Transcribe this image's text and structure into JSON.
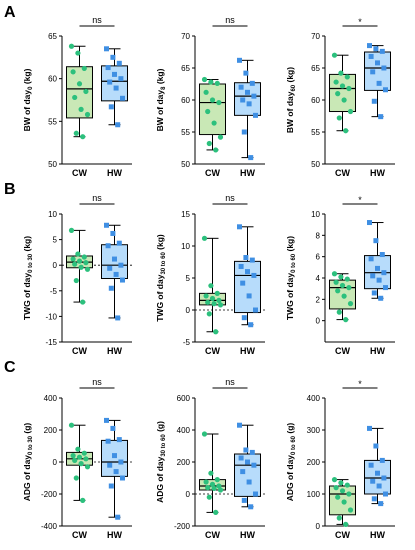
{
  "figure": {
    "panel_letters": [
      "A",
      "B",
      "C"
    ],
    "colors": {
      "CW": "#2cc07d",
      "CW_fill": "#c9e8b6",
      "HW": "#3f8fe3",
      "HW_fill": "#b7dcfb",
      "axis": "#000000"
    }
  },
  "chart_data": [
    {
      "type": "box",
      "row": 0,
      "col": 0,
      "ylabel_main": "BW of day",
      "ylabel_sub": "0",
      "ylabel_unit": " (kg)",
      "ylim": [
        50,
        65
      ],
      "yticks": [
        50,
        55,
        60,
        65
      ],
      "ytick_labels": [
        "50",
        "55",
        "60",
        "65"
      ],
      "zero_line": false,
      "categories": [
        "CW",
        "HW"
      ],
      "significance": "ns",
      "boxes": [
        {
          "name": "CW",
          "min": 53.2,
          "q1": 55.4,
          "median": 58.8,
          "q3": 61.4,
          "max": 63.8,
          "points": [
            63.8,
            63.0,
            61.2,
            60.8,
            59.4,
            58.5,
            57.8,
            56.4,
            55.8,
            53.6,
            53.2
          ]
        },
        {
          "name": "HW",
          "min": 54.6,
          "q1": 57.4,
          "median": 59.7,
          "q3": 61.5,
          "max": 63.5,
          "points": [
            63.5,
            62.5,
            61.8,
            61.3,
            60.5,
            60.0,
            59.6,
            58.9,
            57.7,
            56.7,
            54.6
          ]
        }
      ]
    },
    {
      "type": "box",
      "row": 0,
      "col": 1,
      "ylabel_main": "BW of day",
      "ylabel_sub": "8",
      "ylabel_unit": " (kg)",
      "ylim": [
        50,
        70
      ],
      "yticks": [
        50,
        55,
        60,
        65,
        70
      ],
      "ytick_labels": [
        "50",
        "55",
        "60",
        "65",
        "70"
      ],
      "zero_line": false,
      "categories": [
        "CW",
        "HW"
      ],
      "significance": "ns",
      "boxes": [
        {
          "name": "CW",
          "min": 52.2,
          "q1": 54.6,
          "median": 59.6,
          "q3": 62.5,
          "max": 63.2,
          "points": [
            63.2,
            62.8,
            62.6,
            61.2,
            60.0,
            59.6,
            58.2,
            56.4,
            54.2,
            53.2,
            52.2
          ]
        },
        {
          "name": "HW",
          "min": 51.0,
          "q1": 57.6,
          "median": 60.6,
          "q3": 62.7,
          "max": 66.2,
          "points": [
            66.2,
            64.2,
            62.6,
            62.0,
            61.2,
            60.6,
            60.0,
            59.4,
            57.6,
            55.0,
            51.0
          ]
        }
      ]
    },
    {
      "type": "box",
      "row": 0,
      "col": 2,
      "ylabel_main": "BW of day",
      "ylabel_sub": "60",
      "ylabel_unit": " (kg)",
      "ylim": [
        50,
        70
      ],
      "yticks": [
        50,
        55,
        60,
        65,
        70
      ],
      "ytick_labels": [
        "50",
        "55",
        "60",
        "65",
        "70"
      ],
      "zero_line": false,
      "categories": [
        "CW",
        "HW"
      ],
      "significance": "*",
      "boxes": [
        {
          "name": "CW",
          "min": 55.2,
          "q1": 58.2,
          "median": 61.8,
          "q3": 64.0,
          "max": 67.0,
          "points": [
            67.0,
            64.2,
            63.6,
            62.8,
            62.2,
            61.8,
            61.0,
            60.0,
            58.2,
            57.2,
            55.2
          ]
        },
        {
          "name": "HW",
          "min": 57.4,
          "q1": 61.5,
          "median": 65.0,
          "q3": 67.5,
          "max": 68.5,
          "points": [
            68.5,
            68.0,
            67.6,
            66.8,
            65.8,
            65.0,
            64.4,
            62.6,
            61.6,
            59.8,
            57.4
          ]
        }
      ]
    },
    {
      "type": "box",
      "row": 1,
      "col": 0,
      "ylabel_main": "TWG of day",
      "ylabel_sub": "0 to 30",
      "ylabel_unit": " (kg)",
      "ylim": [
        -15,
        10
      ],
      "yticks": [
        -15,
        -10,
        -5,
        0,
        5,
        10
      ],
      "ytick_labels": [
        "-15",
        "-10",
        "-5",
        "0",
        "5",
        "10"
      ],
      "zero_line": true,
      "categories": [
        "CW",
        "HW"
      ],
      "significance": "ns",
      "boxes": [
        {
          "name": "CW",
          "min": -7.2,
          "q1": -0.5,
          "median": 0.6,
          "q3": 1.8,
          "max": 6.8,
          "points": [
            6.8,
            2.2,
            1.6,
            1.2,
            0.8,
            0.5,
            0.2,
            -0.4,
            -0.8,
            -3.0,
            -7.2
          ]
        },
        {
          "name": "HW",
          "min": -10.3,
          "q1": -2.6,
          "median": 0.0,
          "q3": 4.0,
          "max": 7.8,
          "points": [
            7.8,
            6.2,
            4.3,
            3.8,
            1.2,
            0.0,
            -0.6,
            -1.8,
            -2.9,
            -4.5,
            -10.3
          ]
        }
      ]
    },
    {
      "type": "box",
      "row": 1,
      "col": 1,
      "ylabel_main": "TWG of day",
      "ylabel_sub": "30 to 60",
      "ylabel_unit": " (kg)",
      "ylim": [
        -5,
        15
      ],
      "yticks": [
        -5,
        0,
        5,
        10,
        15
      ],
      "ytick_labels": [
        "-5",
        "0",
        "5",
        "10",
        "15"
      ],
      "zero_line": true,
      "categories": [
        "CW",
        "HW"
      ],
      "significance": "ns",
      "boxes": [
        {
          "name": "CW",
          "min": -3.4,
          "q1": 0.8,
          "median": 1.5,
          "q3": 2.6,
          "max": 11.2,
          "points": [
            11.2,
            3.8,
            2.6,
            2.2,
            1.8,
            1.5,
            1.2,
            1.0,
            0.8,
            -0.6,
            -3.4
          ]
        },
        {
          "name": "HW",
          "min": -2.3,
          "q1": -0.4,
          "median": 5.4,
          "q3": 7.6,
          "max": 13.0,
          "points": [
            13.0,
            8.2,
            7.8,
            6.8,
            6.0,
            5.4,
            4.2,
            2.2,
            0.0,
            -1.2,
            -2.3
          ]
        }
      ]
    },
    {
      "type": "box",
      "row": 1,
      "col": 2,
      "ylabel_main": "TWG of day",
      "ylabel_sub": "0 to 60",
      "ylabel_unit": " (kg)",
      "ylim": [
        -2,
        10
      ],
      "yticks": [
        0,
        2,
        4,
        6,
        8,
        10
      ],
      "ytick_labels": [
        "0",
        "2",
        "4",
        "6",
        "8",
        "10"
      ],
      "zero_line": false,
      "categories": [
        "CW",
        "HW"
      ],
      "significance": "*",
      "boxes": [
        {
          "name": "CW",
          "min": 0.1,
          "q1": 1.1,
          "median": 3.1,
          "q3": 3.8,
          "max": 4.4,
          "points": [
            4.4,
            4.1,
            3.9,
            3.6,
            3.3,
            3.1,
            2.8,
            2.3,
            1.6,
            0.8,
            0.1
          ]
        },
        {
          "name": "HW",
          "min": 2.1,
          "q1": 3.0,
          "median": 4.5,
          "q3": 6.1,
          "max": 9.2,
          "points": [
            9.2,
            7.5,
            6.2,
            5.8,
            4.9,
            4.5,
            4.2,
            3.8,
            3.1,
            2.6,
            2.1
          ]
        }
      ]
    },
    {
      "type": "box",
      "row": 2,
      "col": 0,
      "ylabel_main": "ADG of day",
      "ylabel_sub": "0 to 30",
      "ylabel_unit": " (g)",
      "ylim": [
        -400,
        400
      ],
      "yticks": [
        -400,
        -200,
        0,
        200,
        400
      ],
      "ytick_labels": [
        "-400",
        "-200",
        "0",
        "200",
        "400"
      ],
      "zero_line": true,
      "categories": [
        "CW",
        "HW"
      ],
      "significance": "ns",
      "boxes": [
        {
          "name": "CW",
          "min": -240,
          "q1": -20,
          "median": 20,
          "q3": 60,
          "max": 230,
          "points": [
            230,
            80,
            55,
            40,
            30,
            20,
            10,
            -10,
            -30,
            -100,
            -240
          ]
        },
        {
          "name": "HW",
          "min": -345,
          "q1": -90,
          "median": 0,
          "q3": 135,
          "max": 260,
          "points": [
            260,
            210,
            140,
            130,
            40,
            0,
            -20,
            -60,
            -100,
            -150,
            -345
          ]
        }
      ]
    },
    {
      "type": "box",
      "row": 2,
      "col": 1,
      "ylabel_main": "ADG of day",
      "ylabel_sub": "30 to 60",
      "ylabel_unit": " (g)",
      "ylim": [
        -200,
        600
      ],
      "yticks": [
        -200,
        0,
        200,
        400,
        600
      ],
      "ytick_labels": [
        "-200",
        "0",
        "200",
        "400",
        "600"
      ],
      "zero_line": true,
      "categories": [
        "CW",
        "HW"
      ],
      "significance": "ns",
      "boxes": [
        {
          "name": "CW",
          "min": -115,
          "q1": 25,
          "median": 50,
          "q3": 90,
          "max": 375,
          "points": [
            375,
            130,
            90,
            75,
            60,
            50,
            40,
            35,
            25,
            -20,
            -115
          ]
        },
        {
          "name": "HW",
          "min": -80,
          "q1": -15,
          "median": 180,
          "q3": 250,
          "max": 430,
          "points": [
            430,
            275,
            260,
            225,
            200,
            180,
            140,
            75,
            0,
            -40,
            -80
          ]
        }
      ]
    },
    {
      "type": "box",
      "row": 2,
      "col": 2,
      "ylabel_main": "ADG of day",
      "ylabel_sub": "0 to 60",
      "ylabel_unit": " (g)",
      "ylim": [
        0,
        400
      ],
      "yticks": [
        0,
        100,
        200,
        300,
        400
      ],
      "ytick_labels": [
        "0",
        "100",
        "200",
        "300",
        "400"
      ],
      "zero_line": false,
      "categories": [
        "CW",
        "HW"
      ],
      "significance": "*",
      "boxes": [
        {
          "name": "CW",
          "min": 5,
          "q1": 35,
          "median": 100,
          "q3": 125,
          "max": 145,
          "points": [
            145,
            135,
            128,
            120,
            110,
            100,
            90,
            75,
            50,
            25,
            5
          ]
        },
        {
          "name": "HW",
          "min": 70,
          "q1": 100,
          "median": 150,
          "q3": 205,
          "max": 305,
          "points": [
            305,
            250,
            205,
            190,
            165,
            150,
            140,
            125,
            100,
            85,
            70
          ]
        }
      ]
    }
  ]
}
